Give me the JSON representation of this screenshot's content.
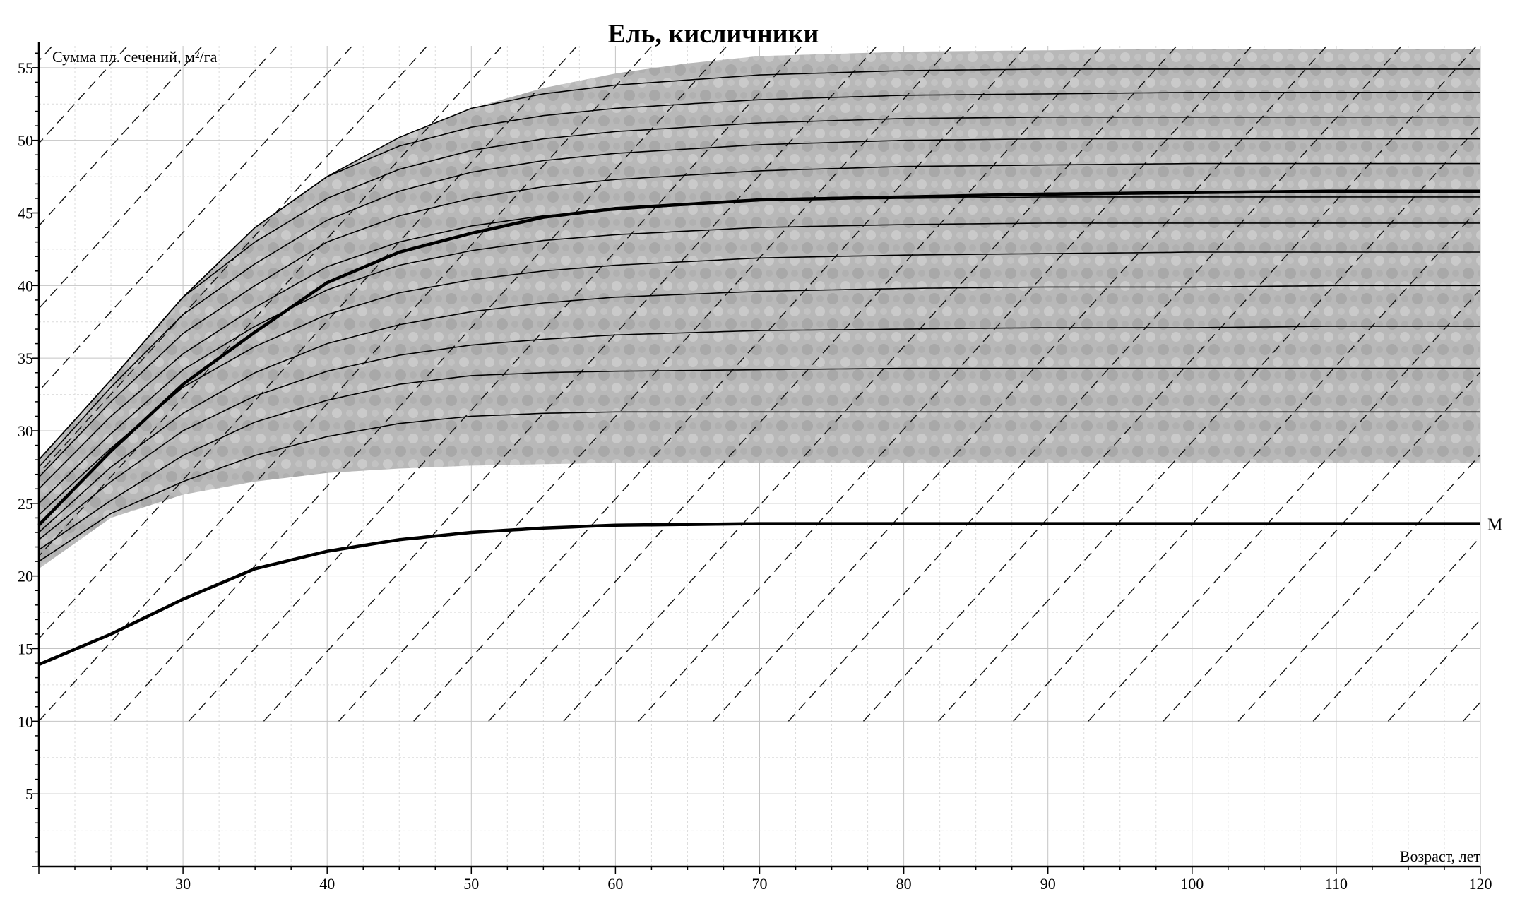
{
  "chart_data": {
    "type": "line",
    "title": "Ель, кисличники",
    "xlabel": "Возраст, лет",
    "ylabel": "Сумма пл. сечений, м²/га",
    "xlim": [
      20,
      120
    ],
    "ylim": [
      0,
      56.5
    ],
    "x_ticks": [
      30,
      40,
      50,
      60,
      70,
      80,
      90,
      100,
      110,
      120
    ],
    "y_ticks": [
      5,
      10,
      15,
      20,
      25,
      30,
      35,
      40,
      45,
      50,
      55
    ],
    "grid": true,
    "shaded_band": {
      "upper": {
        "x": [
          20,
          25,
          30,
          35,
          40,
          45,
          50,
          55,
          60,
          65,
          70,
          80,
          90,
          100,
          110,
          120
        ],
        "y": [
          28,
          33.5,
          39.2,
          44.0,
          47.5,
          50.2,
          52.2,
          53.6,
          54.6,
          55.3,
          55.8,
          56.1,
          56.2,
          56.3,
          56.3,
          56.3
        ]
      },
      "lower": {
        "x": [
          20,
          25,
          30,
          35,
          40,
          45,
          50,
          55,
          60,
          70,
          80,
          90,
          100,
          110,
          120
        ],
        "y": [
          20.5,
          24.0,
          25.6,
          26.5,
          27.1,
          27.4,
          27.6,
          27.7,
          27.8,
          27.8,
          27.8,
          27.8,
          27.8,
          27.8,
          27.8
        ]
      }
    },
    "series": [
      {
        "x": [
          20,
          25,
          30,
          35,
          40,
          45,
          50,
          55,
          60,
          70,
          80,
          90,
          100,
          110,
          120
        ],
        "y": [
          21.0,
          24.3,
          26.5,
          28.3,
          29.6,
          30.5,
          31.0,
          31.2,
          31.3,
          31.3,
          31.3,
          31.3,
          31.3,
          31.3,
          31.3
        ]
      },
      {
        "x": [
          20,
          25,
          30,
          35,
          40,
          45,
          50,
          55,
          60,
          70,
          80,
          90,
          100,
          110,
          120
        ],
        "y": [
          21.8,
          25.2,
          28.3,
          30.6,
          32.1,
          33.2,
          33.8,
          34.0,
          34.1,
          34.2,
          34.3,
          34.3,
          34.3,
          34.3,
          34.3
        ]
      },
      {
        "x": [
          20,
          25,
          30,
          35,
          40,
          45,
          50,
          55,
          60,
          70,
          80,
          90,
          100,
          110,
          120
        ],
        "y": [
          22.5,
          26.5,
          30.0,
          32.4,
          34.1,
          35.2,
          35.9,
          36.3,
          36.6,
          36.9,
          37.0,
          37.1,
          37.1,
          37.2,
          37.2
        ]
      },
      {
        "x": [
          20,
          25,
          30,
          35,
          40,
          45,
          50,
          55,
          60,
          70,
          80,
          90,
          100,
          110,
          120
        ],
        "y": [
          23.0,
          27.5,
          31.2,
          34.0,
          36.0,
          37.3,
          38.2,
          38.8,
          39.2,
          39.6,
          39.8,
          39.9,
          39.9,
          40.0,
          40.0
        ]
      },
      {
        "x": [
          20,
          25,
          30,
          35,
          40,
          45,
          50,
          55,
          60,
          70,
          80,
          90,
          100,
          110,
          120
        ],
        "y": [
          24.2,
          28.8,
          33.0,
          35.8,
          38.0,
          39.5,
          40.4,
          41.0,
          41.4,
          41.9,
          42.1,
          42.2,
          42.3,
          42.3,
          42.3
        ]
      },
      {
        "x": [
          20,
          25,
          30,
          35,
          40,
          45,
          50,
          55,
          60,
          70,
          80,
          90,
          100,
          110,
          120
        ],
        "y": [
          25.0,
          29.8,
          34.2,
          37.2,
          39.7,
          41.4,
          42.4,
          43.1,
          43.5,
          44.0,
          44.2,
          44.3,
          44.3,
          44.3,
          44.3
        ]
      },
      {
        "x": [
          20,
          25,
          30,
          35,
          40,
          45,
          50,
          55,
          60,
          70,
          80,
          90,
          100,
          110,
          120
        ],
        "y": [
          26.0,
          31.0,
          35.3,
          38.5,
          41.3,
          43.0,
          44.1,
          44.8,
          45.2,
          45.9,
          46.0,
          46.1,
          46.1,
          46.1,
          46.1
        ]
      },
      {
        "x": [
          20,
          25,
          30,
          35,
          40,
          45,
          50,
          55,
          60,
          70,
          80,
          90,
          100,
          110,
          120
        ],
        "y": [
          26.8,
          32.0,
          36.7,
          40.0,
          43.0,
          44.8,
          46.0,
          46.8,
          47.3,
          47.9,
          48.2,
          48.3,
          48.4,
          48.4,
          48.4
        ]
      },
      {
        "x": [
          20,
          25,
          30,
          35,
          40,
          45,
          50,
          55,
          60,
          70,
          80,
          90,
          100,
          110,
          120
        ],
        "y": [
          27.5,
          33.0,
          38.0,
          41.5,
          44.5,
          46.5,
          47.8,
          48.6,
          49.1,
          49.7,
          50.0,
          50.1,
          50.1,
          50.1,
          50.1
        ]
      },
      {
        "x": [
          20,
          25,
          30,
          35,
          40,
          45,
          50,
          55,
          60,
          70,
          80,
          90,
          100,
          110,
          120
        ],
        "y": [
          28.0,
          33.5,
          39.2,
          43.0,
          46.0,
          48.0,
          49.3,
          50.1,
          50.6,
          51.2,
          51.5,
          51.6,
          51.6,
          51.6,
          51.6
        ]
      },
      {
        "x": [
          20,
          25,
          30,
          35,
          40,
          45,
          50,
          55,
          60,
          70,
          80,
          90,
          100,
          110,
          120
        ],
        "y": [
          28.0,
          33.5,
          39.2,
          44.0,
          47.5,
          49.6,
          50.9,
          51.7,
          52.2,
          52.8,
          53.1,
          53.2,
          53.3,
          53.3,
          53.3
        ]
      },
      {
        "x": [
          20,
          25,
          30,
          35,
          40,
          45,
          50,
          55,
          60,
          70,
          80,
          90,
          100,
          110,
          120
        ],
        "y": [
          28.0,
          33.5,
          39.2,
          44.0,
          47.5,
          50.2,
          52.2,
          53.2,
          53.8,
          54.5,
          54.8,
          54.9,
          54.9,
          54.9,
          54.9
        ]
      },
      {
        "x": [
          20,
          25,
          30,
          35,
          40,
          45,
          50,
          55,
          60,
          70,
          80,
          90,
          100,
          110,
          120
        ],
        "y": [
          23.5,
          28.6,
          33.2,
          36.8,
          40.2,
          42.3,
          43.6,
          44.7,
          45.3,
          45.9,
          46.1,
          46.3,
          46.4,
          46.5,
          46.5
        ]
      },
      {
        "name": "M",
        "x": [
          20,
          25,
          30,
          35,
          40,
          45,
          50,
          55,
          60,
          70,
          80,
          90,
          100,
          110,
          120
        ],
        "y": [
          13.9,
          16.0,
          18.4,
          20.5,
          21.7,
          22.5,
          23.0,
          23.3,
          23.5,
          23.6,
          23.6,
          23.6,
          23.6,
          23.6,
          23.6
        ]
      }
    ]
  }
}
